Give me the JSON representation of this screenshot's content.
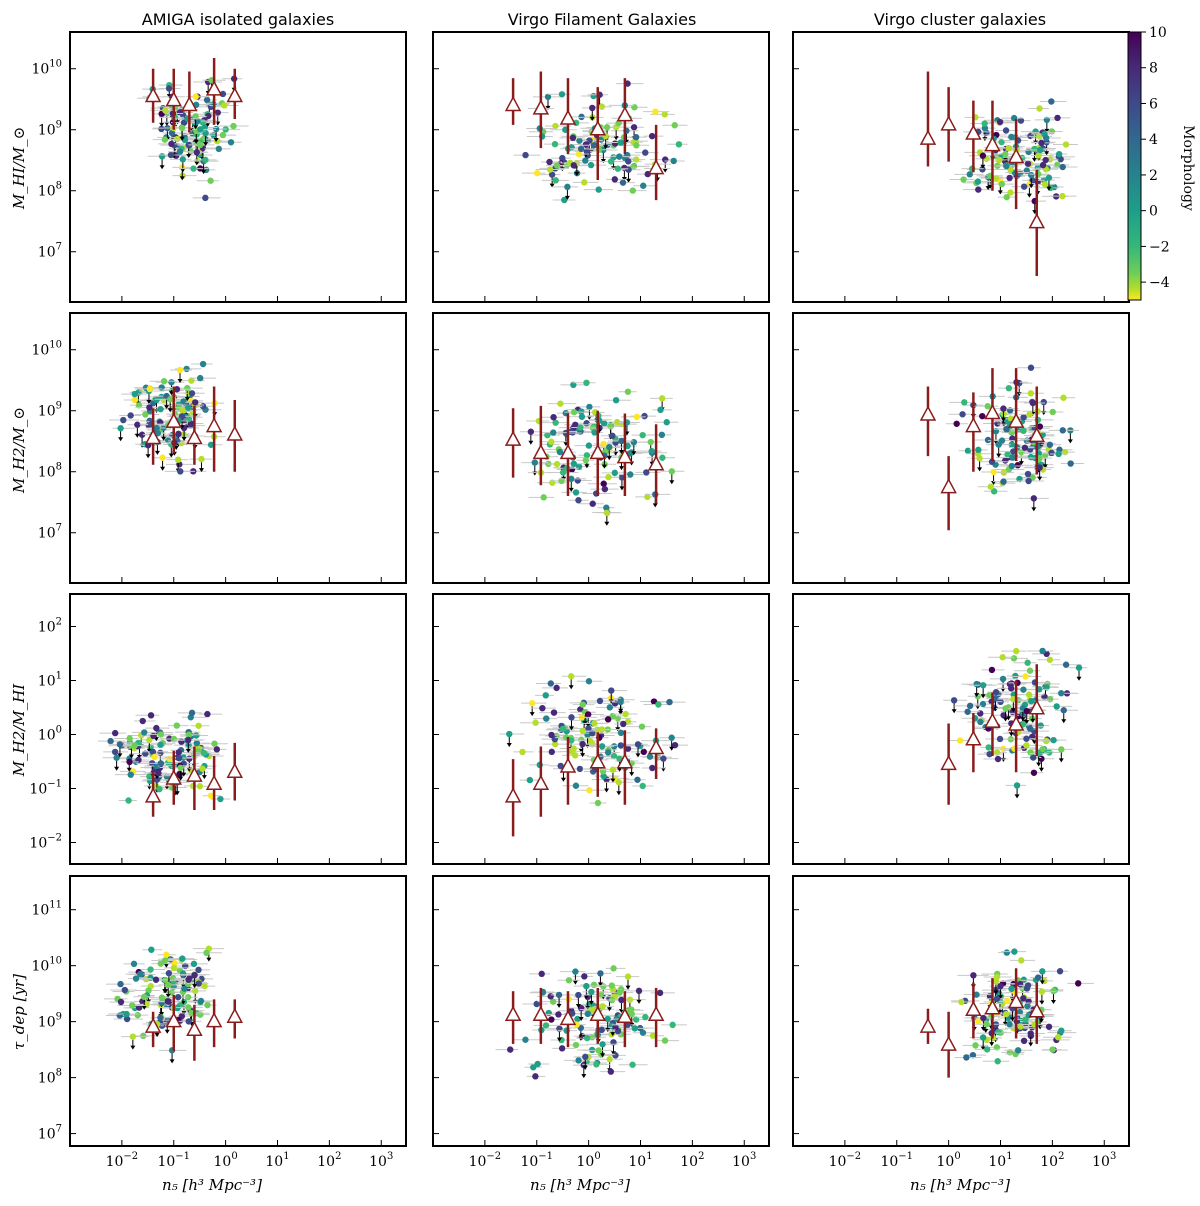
{
  "column_titles": [
    "AMIGA isolated galaxies",
    "Virgo Filament Galaxies",
    "Virgo cluster galaxies"
  ],
  "row_ylabels": [
    "M_HI/M_⊙",
    "M_H2/M_⊙",
    "M_H2/M_HI",
    "τ_dep [yr]"
  ],
  "xlabel": "n₅ [h³ Mpc⁻³]",
  "colorbar": {
    "label": "Morphology",
    "ticks": [
      "10",
      "8",
      "6",
      "4",
      "2",
      "0",
      "−2",
      "−4"
    ],
    "range": [
      -5,
      10
    ],
    "colormap": "viridis_r"
  },
  "colors": {
    "median_marker": "#8b1c1c",
    "errorbar": "#bbbbbb",
    "axes": "#000000"
  },
  "chart_data": [
    {
      "type": "scatter",
      "title": "AMIGA isolated galaxies",
      "ylabel": "M_HI/M_sun",
      "xscale": "log",
      "yscale": "log",
      "xlim": [
        0.001,
        3000
      ],
      "ylim": [
        1500000,
        40000000000
      ],
      "yticks": [
        "10^7",
        "10^8",
        "10^9",
        "10^10"
      ],
      "points_summary": {
        "x_range": [
          0.01,
          5
        ],
        "y_range": [
          20000000,
          20000000000
        ],
        "morph_range": [
          -5,
          10
        ]
      },
      "medians": [
        {
          "x": 0.04,
          "y": 3500000000,
          "lo": 1300000000,
          "hi": 10000000000
        },
        {
          "x": 0.1,
          "y": 3000000000,
          "lo": 1000000000,
          "hi": 10000000000
        },
        {
          "x": 0.2,
          "y": 2500000000,
          "lo": 900000000,
          "hi": 9000000000
        },
        {
          "x": 0.6,
          "y": 4500000000,
          "lo": 1200000000,
          "hi": 15000000000
        },
        {
          "x": 1.5,
          "y": 3500000000,
          "lo": 1500000000,
          "hi": 10000000000
        }
      ]
    },
    {
      "type": "scatter",
      "title": "Virgo Filament Galaxies",
      "ylabel": "M_HI/M_sun",
      "xscale": "log",
      "yscale": "log",
      "xlim": [
        0.001,
        3000
      ],
      "ylim": [
        1500000,
        40000000000
      ],
      "points_summary": {
        "x_range": [
          0.005,
          450
        ],
        "y_range": [
          9000000,
          16000000000
        ],
        "morph_range": [
          -5,
          10
        ]
      },
      "medians": [
        {
          "x": 0.035,
          "y": 2500000000,
          "lo": 1200000000,
          "hi": 7000000000
        },
        {
          "x": 0.12,
          "y": 2200000000,
          "lo": 500000000,
          "hi": 9000000000
        },
        {
          "x": 0.4,
          "y": 1500000000,
          "lo": 400000000,
          "hi": 7000000000
        },
        {
          "x": 1.5,
          "y": 1000000000,
          "lo": 150000000,
          "hi": 5000000000
        },
        {
          "x": 5,
          "y": 1700000000,
          "lo": 400000000,
          "hi": 7000000000
        },
        {
          "x": 20,
          "y": 230000000,
          "lo": 70000000,
          "hi": 1200000000
        }
      ]
    },
    {
      "type": "scatter",
      "title": "Virgo cluster galaxies",
      "ylabel": "M_HI/M_sun",
      "xscale": "log",
      "yscale": "log",
      "xlim": [
        0.001,
        3000
      ],
      "ylim": [
        1500000,
        40000000000
      ],
      "points_summary": {
        "x_range": [
          0.3,
          1500
        ],
        "y_range": [
          6000000,
          9000000000
        ],
        "morph_range": [
          -5,
          10
        ]
      },
      "medians": [
        {
          "x": 0.4,
          "y": 700000000,
          "lo": 250000000,
          "hi": 9000000000
        },
        {
          "x": 1,
          "y": 1200000000,
          "lo": 300000000,
          "hi": 5000000000
        },
        {
          "x": 3,
          "y": 850000000,
          "lo": 200000000,
          "hi": 3000000000
        },
        {
          "x": 7,
          "y": 550000000,
          "lo": 100000000,
          "hi": 3000000000
        },
        {
          "x": 20,
          "y": 350000000,
          "lo": 50000000,
          "hi": 1500000000
        },
        {
          "x": 50,
          "y": 30000000,
          "lo": 4000000,
          "hi": 220000000
        }
      ]
    },
    {
      "type": "scatter",
      "ylabel": "M_H2/M_sun",
      "xscale": "log",
      "yscale": "log",
      "xlim": [
        0.001,
        3000
      ],
      "ylim": [
        1500000,
        40000000000
      ],
      "yticks": [
        "10^7",
        "10^8",
        "10^9",
        "10^10"
      ],
      "points_summary": {
        "x_range": [
          0.0015,
          4
        ],
        "y_range": [
          25000000,
          15000000000
        ],
        "morph_range": [
          -5,
          10
        ]
      },
      "medians": [
        {
          "x": 0.04,
          "y": 350000000,
          "lo": 130000000,
          "hi": 1100000000
        },
        {
          "x": 0.1,
          "y": 650000000,
          "lo": 200000000,
          "hi": 2500000000
        },
        {
          "x": 0.25,
          "y": 350000000,
          "lo": 130000000,
          "hi": 1200000000
        },
        {
          "x": 0.6,
          "y": 550000000,
          "lo": 100000000,
          "hi": 2500000000
        },
        {
          "x": 1.5,
          "y": 400000000,
          "lo": 100000000,
          "hi": 1500000000
        }
      ]
    },
    {
      "type": "scatter",
      "ylabel": "M_H2/M_sun",
      "xscale": "log",
      "yscale": "log",
      "xlim": [
        0.001,
        3000
      ],
      "ylim": [
        1500000,
        40000000000
      ],
      "points_summary": {
        "x_range": [
          0.005,
          450
        ],
        "y_range": [
          2800000,
          10000000000
        ],
        "morph_range": [
          -5,
          10
        ]
      },
      "medians": [
        {
          "x": 0.035,
          "y": 330000000,
          "lo": 80000000,
          "hi": 1100000000
        },
        {
          "x": 0.12,
          "y": 200000000,
          "lo": 60000000,
          "hi": 1200000000
        },
        {
          "x": 0.4,
          "y": 200000000,
          "lo": 40000000,
          "hi": 900000000
        },
        {
          "x": 1.5,
          "y": 200000000,
          "lo": 40000000,
          "hi": 1000000000
        },
        {
          "x": 5,
          "y": 170000000,
          "lo": 40000000,
          "hi": 900000000
        },
        {
          "x": 20,
          "y": 130000000,
          "lo": 30000000,
          "hi": 600000000
        }
      ]
    },
    {
      "type": "scatter",
      "ylabel": "M_H2/M_sun",
      "xscale": "log",
      "yscale": "log",
      "xlim": [
        0.001,
        3000
      ],
      "ylim": [
        1500000,
        40000000000
      ],
      "points_summary": {
        "x_range": [
          0.3,
          1500
        ],
        "y_range": [
          7000000,
          12000000000
        ],
        "morph_range": [
          -5,
          10
        ]
      },
      "medians": [
        {
          "x": 0.4,
          "y": 850000000,
          "lo": 180000000,
          "hi": 2500000000
        },
        {
          "x": 1,
          "y": 55000000,
          "lo": 11000000,
          "hi": 180000000
        },
        {
          "x": 3,
          "y": 550000000,
          "lo": 100000000,
          "hi": 2000000000
        },
        {
          "x": 7,
          "y": 900000000,
          "lo": 150000000,
          "hi": 5000000000
        },
        {
          "x": 20,
          "y": 650000000,
          "lo": 150000000,
          "hi": 5000000000
        },
        {
          "x": 50,
          "y": 380000000,
          "lo": 90000000,
          "hi": 2500000000
        }
      ]
    },
    {
      "type": "scatter",
      "ylabel": "M_H2/M_HI",
      "xscale": "log",
      "yscale": "log",
      "xlim": [
        0.001,
        3000
      ],
      "ylim": [
        0.004,
        400
      ],
      "yticks": [
        "10^-2",
        "10^-1",
        "10^0",
        "10^1",
        "10^2"
      ],
      "points_summary": {
        "x_range": [
          0.0015,
          4
        ],
        "y_range": [
          0.015,
          6.5
        ],
        "morph_range": [
          -5,
          10
        ]
      },
      "medians": [
        {
          "x": 0.04,
          "y": 0.07,
          "lo": 0.03,
          "hi": 0.2
        },
        {
          "x": 0.1,
          "y": 0.15,
          "lo": 0.05,
          "hi": 0.5
        },
        {
          "x": 0.25,
          "y": 0.17,
          "lo": 0.04,
          "hi": 0.6
        },
        {
          "x": 0.6,
          "y": 0.12,
          "lo": 0.04,
          "hi": 0.4
        },
        {
          "x": 1.5,
          "y": 0.2,
          "lo": 0.06,
          "hi": 0.7
        }
      ]
    },
    {
      "type": "scatter",
      "ylabel": "M_H2/M_HI",
      "xscale": "log",
      "yscale": "log",
      "xlim": [
        0.001,
        3000
      ],
      "ylim": [
        0.004,
        400
      ],
      "points_summary": {
        "x_range": [
          0.005,
          450
        ],
        "y_range": [
          0.006,
          55
        ],
        "morph_range": [
          -5,
          10
        ]
      },
      "medians": [
        {
          "x": 0.035,
          "y": 0.07,
          "lo": 0.013,
          "hi": 0.35
        },
        {
          "x": 0.12,
          "y": 0.12,
          "lo": 0.03,
          "hi": 0.6
        },
        {
          "x": 0.4,
          "y": 0.25,
          "lo": 0.05,
          "hi": 0.9
        },
        {
          "x": 1.5,
          "y": 0.3,
          "lo": 0.07,
          "hi": 1.1
        },
        {
          "x": 5,
          "y": 0.3,
          "lo": 0.05,
          "hi": 1.2
        },
        {
          "x": 20,
          "y": 0.55,
          "lo": 0.15,
          "hi": 1.3
        }
      ]
    },
    {
      "type": "scatter",
      "ylabel": "M_H2/M_HI",
      "xscale": "log",
      "yscale": "log",
      "xlim": [
        0.001,
        3000
      ],
      "ylim": [
        0.004,
        400
      ],
      "points_summary": {
        "x_range": [
          0.3,
          1500
        ],
        "y_range": [
          0.012,
          220
        ],
        "morph_range": [
          -5,
          10
        ]
      },
      "medians": [
        {
          "x": 1,
          "y": 0.28,
          "lo": 0.05,
          "hi": 1.6
        },
        {
          "x": 3,
          "y": 0.8,
          "lo": 0.2,
          "hi": 2.5
        },
        {
          "x": 7,
          "y": 1.7,
          "lo": 0.4,
          "hi": 6
        },
        {
          "x": 20,
          "y": 1.5,
          "lo": 0.2,
          "hi": 10
        },
        {
          "x": 50,
          "y": 3,
          "lo": 0.4,
          "hi": 20
        }
      ]
    },
    {
      "type": "scatter",
      "ylabel": "tau_dep [yr]",
      "xscale": "log",
      "yscale": "log",
      "xlim": [
        0.001,
        3000
      ],
      "ylim": [
        6000000,
        400000000000
      ],
      "yticks": [
        "10^7",
        "10^8",
        "10^9",
        "10^10",
        "10^11"
      ],
      "xticks": [
        "10^-2",
        "10^-1",
        "10^0",
        "10^1",
        "10^2",
        "10^3"
      ],
      "points_summary": {
        "x_range": [
          0.0015,
          4
        ],
        "y_range": [
          90000000,
          60000000000
        ],
        "morph_range": [
          -5,
          10
        ]
      },
      "medians": [
        {
          "x": 0.04,
          "y": 800000000,
          "lo": 350000000,
          "hi": 1500000000
        },
        {
          "x": 0.1,
          "y": 1000000000,
          "lo": 300000000,
          "hi": 3000000000
        },
        {
          "x": 0.25,
          "y": 700000000,
          "lo": 200000000,
          "hi": 2000000000
        },
        {
          "x": 0.6,
          "y": 1000000000,
          "lo": 350000000,
          "hi": 2500000000
        },
        {
          "x": 1.5,
          "y": 1200000000,
          "lo": 500000000,
          "hi": 2500000000
        }
      ]
    },
    {
      "type": "scatter",
      "ylabel": "tau_dep [yr]",
      "xscale": "log",
      "yscale": "log",
      "xlim": [
        0.001,
        3000
      ],
      "ylim": [
        6000000,
        400000000000
      ],
      "xticks": [
        "10^-2",
        "10^-1",
        "10^0",
        "10^1",
        "10^2",
        "10^3"
      ],
      "points_summary": {
        "x_range": [
          0.005,
          450
        ],
        "y_range": [
          14000000,
          35000000000
        ],
        "morph_range": [
          -5,
          10
        ]
      },
      "medians": [
        {
          "x": 0.035,
          "y": 1300000000,
          "lo": 400000000,
          "hi": 3500000000
        },
        {
          "x": 0.12,
          "y": 1300000000,
          "lo": 400000000,
          "hi": 4000000000
        },
        {
          "x": 0.4,
          "y": 1100000000,
          "lo": 350000000,
          "hi": 3500000000
        },
        {
          "x": 1.5,
          "y": 1300000000,
          "lo": 400000000,
          "hi": 4000000000
        },
        {
          "x": 5,
          "y": 1200000000,
          "lo": 350000000,
          "hi": 3500000000
        },
        {
          "x": 20,
          "y": 1300000000,
          "lo": 350000000,
          "hi": 4000000000
        }
      ]
    },
    {
      "type": "scatter",
      "ylabel": "tau_dep [yr]",
      "xscale": "log",
      "yscale": "log",
      "xlim": [
        0.001,
        3000
      ],
      "ylim": [
        6000000,
        400000000000
      ],
      "xticks": [
        "10^-2",
        "10^-1",
        "10^0",
        "10^1",
        "10^2",
        "10^3"
      ],
      "points_summary": {
        "x_range": [
          0.3,
          1500
        ],
        "y_range": [
          20000000,
          60000000000
        ],
        "morph_range": [
          -5,
          10
        ]
      },
      "medians": [
        {
          "x": 0.4,
          "y": 800000000,
          "lo": 400000000,
          "hi": 1700000000
        },
        {
          "x": 1,
          "y": 380000000,
          "lo": 100000000,
          "hi": 1500000000
        },
        {
          "x": 3,
          "y": 1600000000,
          "lo": 500000000,
          "hi": 5000000000
        },
        {
          "x": 7,
          "y": 1700000000,
          "lo": 500000000,
          "hi": 6000000000
        },
        {
          "x": 20,
          "y": 2200000000,
          "lo": 500000000,
          "hi": 9000000000
        },
        {
          "x": 50,
          "y": 1500000000,
          "lo": 400000000,
          "hi": 5000000000
        }
      ]
    }
  ]
}
